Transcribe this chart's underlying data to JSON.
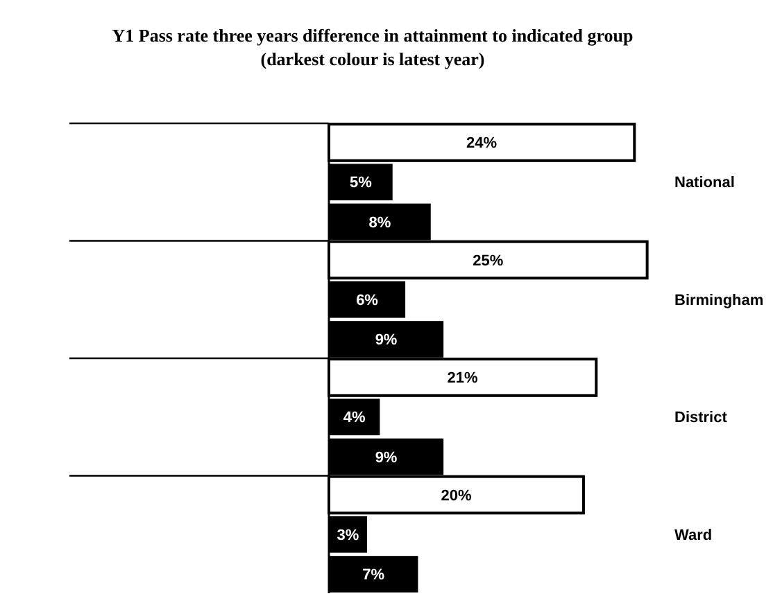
{
  "chart_data": {
    "type": "bar",
    "orientation": "horizontal",
    "title": "Y1 Pass rate three years difference in attainment to indicated group",
    "subtitle": "(darkest colour is latest year)",
    "categories": [
      "National",
      "Birmingham",
      "District",
      "Ward"
    ],
    "series": [
      {
        "color": "#ffffff",
        "values": [
          24,
          25,
          21,
          20
        ],
        "value_labels": [
          "24%",
          "25%",
          "21%",
          "20%"
        ]
      },
      {
        "color": "#000000",
        "values": [
          5,
          6,
          4,
          3
        ],
        "value_labels": [
          "5%",
          "6%",
          "4%",
          "3%"
        ]
      },
      {
        "color": "#000000",
        "values": [
          8,
          9,
          9,
          7
        ],
        "value_labels": [
          "8%",
          "9%",
          "9%",
          "7%"
        ]
      }
    ]
  }
}
